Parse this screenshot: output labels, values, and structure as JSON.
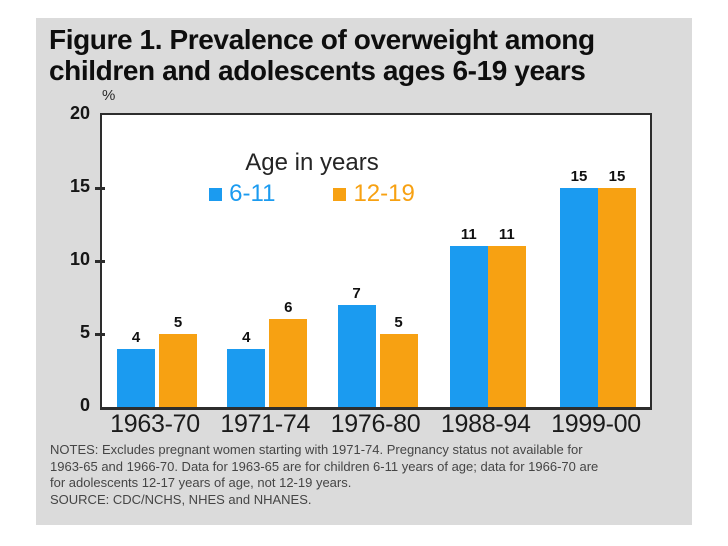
{
  "title": {
    "line1": "Figure 1. Prevalence of overweight among",
    "line2": "children and adolescents ages 6-19 years"
  },
  "chart_data": {
    "type": "bar",
    "title": "Figure 1. Prevalence of overweight among children and adolescents ages 6-19 years",
    "ylabel": "%",
    "xlabel": "",
    "ylim": [
      0,
      20
    ],
    "yticks": [
      0,
      5,
      10,
      15,
      20
    ],
    "grid": false,
    "legend_title": "Age in years",
    "legend_position": "top-center-inside",
    "categories": [
      "1963-70",
      "1971-74",
      "1976-80",
      "1988-94",
      "1999-00"
    ],
    "series": [
      {
        "name": "6-11",
        "color": "#1b9bf0",
        "values": [
          4,
          4,
          7,
          11,
          15
        ]
      },
      {
        "name": "12-19",
        "color": "#f7a112",
        "values": [
          5,
          6,
          5,
          11,
          15
        ]
      }
    ]
  },
  "notes": {
    "lines": [
      "NOTES: Excludes pregnant women starting with 1971-74.  Pregnancy status not available for",
      "1963-65 and 1966-70. Data for 1963-65 are for children 6-11 years of age; data for 1966-70 are",
      "for adolescents 12-17 years of age, not 12-19 years.",
      "SOURCE: CDC/NCHS, NHES and NHANES."
    ]
  },
  "colors": {
    "slide_background": "#dbdbdb",
    "plot_background": "#ffffff",
    "axis": "#2d2d2d",
    "series_6_11": "#1b9bf0",
    "series_12_19": "#f7a112"
  }
}
